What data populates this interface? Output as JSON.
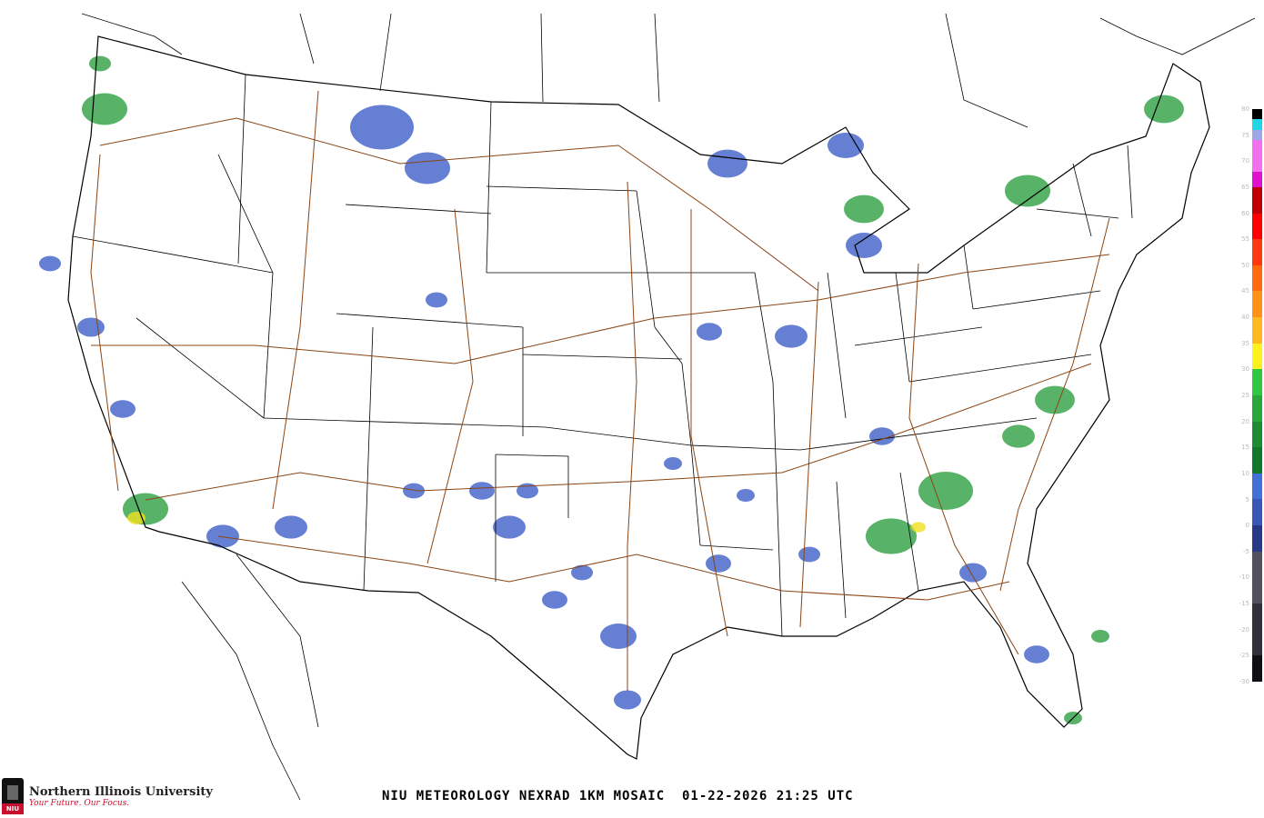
{
  "title": "NIU METEOROLOGY NEXRAD 1KM MOSAIC  01-22-2026 21:25 UTC",
  "logo": {
    "name": "Northern Illinois University",
    "tagline": "Your Future. Our Focus.",
    "seal_text": "NIU"
  },
  "colorbar": {
    "labels": [
      "80",
      "75",
      "70",
      "65",
      "60",
      "55",
      "50",
      "45",
      "40",
      "35",
      "30",
      "25",
      "20",
      "15",
      "10",
      "5",
      "0",
      "-5",
      "-10",
      "-15",
      "-20",
      "-25",
      "-30"
    ],
    "stops": [
      {
        "from": 80,
        "to": 78,
        "color": "#000000"
      },
      {
        "from": 78,
        "to": 76,
        "color": "#1ed6e6"
      },
      {
        "from": 76,
        "to": 74,
        "color": "#9ea8e8"
      },
      {
        "from": 74,
        "to": 68,
        "color": "#f46ef0"
      },
      {
        "from": 68,
        "to": 65,
        "color": "#e010d0"
      },
      {
        "from": 65,
        "to": 60,
        "color": "#c00000"
      },
      {
        "from": 60,
        "to": 55,
        "color": "#ff0000"
      },
      {
        "from": 55,
        "to": 50,
        "color": "#ff3810"
      },
      {
        "from": 50,
        "to": 45,
        "color": "#ff6a10"
      },
      {
        "from": 45,
        "to": 40,
        "color": "#ff9018"
      },
      {
        "from": 40,
        "to": 35,
        "color": "#ffb820"
      },
      {
        "from": 35,
        "to": 30,
        "color": "#fff020"
      },
      {
        "from": 30,
        "to": 25,
        "color": "#30c840"
      },
      {
        "from": 25,
        "to": 20,
        "color": "#28a838"
      },
      {
        "from": 20,
        "to": 15,
        "color": "#1e8c30"
      },
      {
        "from": 15,
        "to": 10,
        "color": "#107828"
      },
      {
        "from": 10,
        "to": 5,
        "color": "#4070d8"
      },
      {
        "from": 5,
        "to": 0,
        "color": "#3858b8"
      },
      {
        "from": 0,
        "to": -5,
        "color": "#283888"
      },
      {
        "from": -5,
        "to": -15,
        "color": "#505060"
      },
      {
        "from": -15,
        "to": -25,
        "color": "#303038"
      },
      {
        "from": -25,
        "to": -30,
        "color": "#101014"
      }
    ]
  },
  "colors": {
    "coastline": "#000000",
    "highways": "#8b4513",
    "light_echo": "#3f5fc8",
    "moderate_echo": "#2ea043",
    "heavy_echo": "#f0e020"
  }
}
